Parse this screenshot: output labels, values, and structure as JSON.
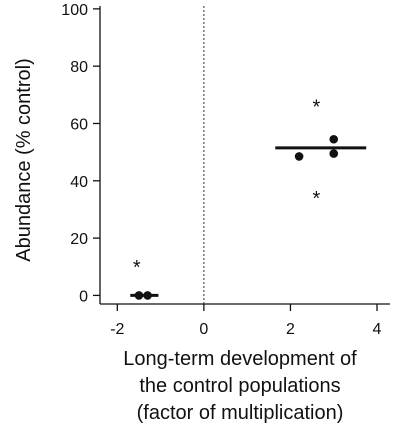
{
  "chart_data": {
    "type": "scatter",
    "title": "",
    "xlabel_lines": [
      "Long-term development of",
      "the control populations",
      "(factor of multiplication)"
    ],
    "ylabel": "Abundance (% control)",
    "xlim": [
      -2.4,
      4.3
    ],
    "ylim": [
      -3,
      101
    ],
    "x_ticks": [
      -2,
      0,
      2,
      4
    ],
    "x_tick_labels": [
      "-2",
      "0",
      "2",
      "4"
    ],
    "y_ticks": [
      0,
      20,
      40,
      60,
      80,
      100
    ],
    "y_tick_labels": [
      "0",
      "20",
      "40",
      "60",
      "80",
      "100"
    ],
    "reference_line_x": 0,
    "reference_line_style": "dotted",
    "grid": false,
    "points": [
      {
        "x": -1.5,
        "y": 0
      },
      {
        "x": -1.3,
        "y": 0
      },
      {
        "x": 2.2,
        "y": 48.5
      },
      {
        "x": 3.0,
        "y": 49.5
      },
      {
        "x": 3.0,
        "y": 54.5
      }
    ],
    "medians": [
      {
        "x_start": -1.7,
        "x_end": -1.05,
        "y": 0
      },
      {
        "x_start": 1.65,
        "x_end": 3.75,
        "y": 51.5
      }
    ],
    "annotations": [
      {
        "text": "*",
        "x": -1.55,
        "y": 11
      },
      {
        "text": "*",
        "x": 2.6,
        "y": 67
      },
      {
        "text": "*",
        "x": 2.6,
        "y": 35
      }
    ],
    "colors": {
      "points": "#111111",
      "axis": "#111111",
      "reference_line": "#333333"
    }
  }
}
